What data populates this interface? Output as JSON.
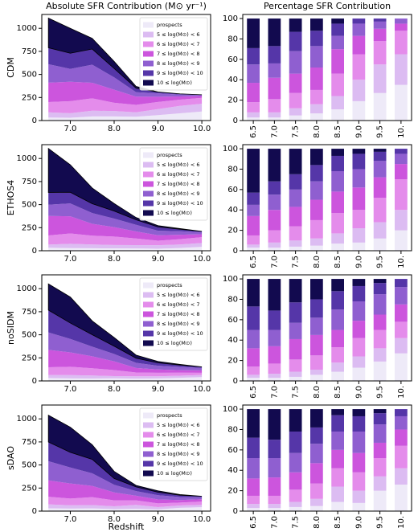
{
  "chart_data": [
    {
      "type": "area",
      "title": "Absolute SFR Contribution (M⊙ yr⁻¹)",
      "ylabel": "CDM",
      "legend": "upper right",
      "x": [
        6.5,
        7.0,
        7.5,
        8.0,
        8.5,
        9.0,
        9.5,
        10.0
      ],
      "xlim": [
        6.35,
        10.2
      ],
      "xticks": [
        {
          "value": 7,
          "label": "7.0"
        },
        {
          "value": 8,
          "label": "8.0"
        },
        {
          "value": 9,
          "label": "9.0"
        },
        {
          "value": 10,
          "label": "10.0"
        }
      ],
      "ylim": [
        0,
        1150
      ],
      "yticks": [
        0,
        250,
        500,
        750,
        1000
      ],
      "series": [
        {
          "name": "prospects",
          "color": "#eeeaf8",
          "values": [
            33,
            30,
            45,
            45,
            41,
            59,
            78,
            98
          ]
        },
        {
          "name": "5 ≤ log(M⊙) < 6",
          "color": "#dcbcf2",
          "values": [
            56,
            50,
            62,
            58,
            48,
            65,
            81,
            84
          ]
        },
        {
          "name": "6 ≤ log(M⊙) < 7",
          "color": "#e48ceb",
          "values": [
            111,
            130,
            134,
            90,
            81,
            78,
            67,
            64
          ]
        },
        {
          "name": "7 ≤ log(M⊙) < 8",
          "color": "#cc55dd",
          "values": [
            211,
            210,
            169,
            141,
            89,
            56,
            35,
            20
          ]
        },
        {
          "name": "8 ≤ log(M⊙) < 9",
          "color": "#8f5fd0",
          "values": [
            200,
            140,
            196,
            134,
            48,
            37,
            20,
            14
          ]
        },
        {
          "name": "9 ≤ log(M⊙) < 10",
          "color": "#5536a8",
          "values": [
            178,
            170,
            169,
            96,
            44,
            15,
            9,
            0
          ]
        },
        {
          "name": "10 ≤ log(M⊙)",
          "color": "#120a4f",
          "values": [
            322,
            270,
            116,
            77,
            19,
            0,
            0,
            0
          ]
        }
      ]
    },
    {
      "type": "bar",
      "title": "Percentage SFR Contribution",
      "categories": [
        "6.5",
        "7.0",
        "7.5",
        "8.0",
        "8.5",
        "9.0",
        "9.5",
        "10."
      ],
      "ylim": [
        0,
        104
      ],
      "yticks": [
        0,
        20,
        40,
        60,
        80,
        100
      ],
      "series": [
        {
          "color": "#eeeaf8",
          "values": [
            3,
            3,
            5,
            7,
            11,
            19,
            27,
            35
          ]
        },
        {
          "color": "#dcbcf2",
          "values": [
            5,
            5,
            7,
            9,
            13,
            21,
            28,
            30
          ]
        },
        {
          "color": "#e48ceb",
          "values": [
            10,
            13,
            15,
            14,
            22,
            25,
            23,
            23
          ]
        },
        {
          "color": "#cc55dd",
          "values": [
            19,
            21,
            19,
            22,
            24,
            18,
            12,
            7
          ]
        },
        {
          "color": "#8f5fd0",
          "values": [
            18,
            14,
            22,
            21,
            13,
            12,
            7,
            5
          ]
        },
        {
          "color": "#5536a8",
          "values": [
            16,
            17,
            19,
            15,
            12,
            5,
            3,
            0
          ]
        },
        {
          "color": "#120a4f",
          "values": [
            29,
            27,
            13,
            12,
            5,
            0,
            0,
            0
          ]
        }
      ]
    },
    {
      "type": "area",
      "ylabel": "ETHOS4",
      "legend": "upper right",
      "x": [
        6.5,
        7.0,
        7.5,
        8.0,
        8.5,
        9.0,
        9.5,
        10.0
      ],
      "xlim": [
        6.35,
        10.2
      ],
      "xticks": [
        {
          "value": 7,
          "label": "7.0"
        },
        {
          "value": 8,
          "label": "8.0"
        },
        {
          "value": 9,
          "label": "9.0"
        },
        {
          "value": 10,
          "label": "10.0"
        }
      ],
      "ylim": [
        0,
        1150
      ],
      "yticks": [
        0,
        250,
        500,
        750,
        1000
      ],
      "series": [
        {
          "name": "prospects",
          "color": "#eeeaf8",
          "values": [
            33,
            28,
            27,
            26,
            25,
            22,
            29,
            42
          ]
        },
        {
          "name": "5 ≤ log(M⊙) < 6",
          "color": "#dcbcf2",
          "values": [
            33,
            47,
            41,
            36,
            36,
            38,
            38,
            42
          ]
        },
        {
          "name": "6 ≤ log(M⊙) < 7",
          "color": "#e48ceb",
          "values": [
            100,
            112,
            95,
            92,
            72,
            49,
            58,
            63
          ]
        },
        {
          "name": "7 ≤ log(M⊙) < 8",
          "color": "#cc55dd",
          "values": [
            211,
            186,
            129,
            102,
            76,
            59,
            48,
            32
          ]
        },
        {
          "name": "8 ≤ log(M⊙) < 9",
          "color": "#8f5fd0",
          "values": [
            122,
            140,
            116,
            92,
            72,
            49,
            38,
            21
          ]
        },
        {
          "name": "9 ≤ log(M⊙) < 10",
          "color": "#5536a8",
          "values": [
            133,
            121,
            102,
            82,
            54,
            41,
            22,
            10
          ]
        },
        {
          "name": "10 ≤ log(M⊙)",
          "color": "#120a4f",
          "values": [
            477,
            298,
            170,
            82,
            25,
            14,
            7,
            0
          ]
        }
      ]
    },
    {
      "type": "bar",
      "categories": [
        "6.5",
        "7.0",
        "7.5",
        "8.0",
        "8.5",
        "9.0",
        "9.5",
        "10."
      ],
      "ylim": [
        0,
        104
      ],
      "yticks": [
        0,
        20,
        40,
        60,
        80,
        100
      ],
      "series": [
        {
          "color": "#eeeaf8",
          "values": [
            3,
            3,
            4,
            5,
            7,
            8,
            12,
            20
          ]
        },
        {
          "color": "#dcbcf2",
          "values": [
            3,
            5,
            6,
            7,
            10,
            14,
            16,
            20
          ]
        },
        {
          "color": "#e48ceb",
          "values": [
            9,
            12,
            14,
            18,
            20,
            18,
            24,
            30
          ]
        },
        {
          "color": "#cc55dd",
          "values": [
            19,
            20,
            19,
            20,
            21,
            22,
            20,
            15
          ]
        },
        {
          "color": "#8f5fd0",
          "values": [
            11,
            15,
            17,
            18,
            20,
            18,
            16,
            10
          ]
        },
        {
          "color": "#5536a8",
          "values": [
            12,
            13,
            15,
            16,
            15,
            15,
            9,
            5
          ]
        },
        {
          "color": "#120a4f",
          "values": [
            43,
            32,
            25,
            16,
            7,
            5,
            3,
            0
          ]
        }
      ]
    },
    {
      "type": "area",
      "ylabel": "noSIDM",
      "legend": "upper right",
      "x": [
        6.5,
        7.0,
        7.5,
        8.0,
        8.5,
        9.0,
        9.5,
        10.0
      ],
      "xlim": [
        6.35,
        10.2
      ],
      "xticks": [
        {
          "value": 7,
          "label": "7.0"
        },
        {
          "value": 8,
          "label": "8.0"
        },
        {
          "value": 9,
          "label": "9.0"
        },
        {
          "value": 10,
          "label": "10.0"
        }
      ],
      "ylim": [
        0,
        1150
      ],
      "yticks": [
        0,
        250,
        500,
        750,
        1000
      ],
      "series": [
        {
          "name": "prospects",
          "color": "#eeeaf8",
          "values": [
            32,
            27,
            26,
            28,
            25,
            27,
            34,
            41
          ]
        },
        {
          "name": "5 ≤ log(M⊙) < 6",
          "color": "#dcbcf2",
          "values": [
            32,
            36,
            33,
            24,
            25,
            23,
            23,
            23
          ]
        },
        {
          "name": "6 ≤ log(M⊙) < 7",
          "color": "#e48ceb",
          "values": [
            84,
            91,
            78,
            66,
            42,
            38,
            32,
            24
          ]
        },
        {
          "name": "7 ≤ log(M⊙) < 8",
          "color": "#cc55dd",
          "values": [
            189,
            155,
            130,
            94,
            48,
            36,
            27,
            26
          ]
        },
        {
          "name": "8 ≤ log(M⊙) < 9",
          "color": "#8f5fd0",
          "values": [
            189,
            146,
            104,
            80,
            56,
            40,
            36,
            26
          ]
        },
        {
          "name": "9 ≤ log(M⊙) < 10",
          "color": "#5536a8",
          "values": [
            242,
            173,
            130,
            85,
            50,
            32,
            20,
            12
          ]
        },
        {
          "name": "10 ≤ log(M⊙)",
          "color": "#120a4f",
          "values": [
            284,
            282,
            150,
            94,
            34,
            15,
            7,
            0
          ]
        }
      ]
    },
    {
      "type": "bar",
      "categories": [
        "6.5",
        "7.0",
        "7.5",
        "8.0",
        "8.5",
        "9.0",
        "9.5",
        "10."
      ],
      "ylim": [
        0,
        104
      ],
      "yticks": [
        0,
        20,
        40,
        60,
        80,
        100
      ],
      "series": [
        {
          "color": "#eeeaf8",
          "values": [
            3,
            3,
            4,
            6,
            9,
            13,
            19,
            27
          ]
        },
        {
          "color": "#dcbcf2",
          "values": [
            3,
            4,
            5,
            5,
            9,
            11,
            13,
            15
          ]
        },
        {
          "color": "#e48ceb",
          "values": [
            8,
            10,
            12,
            14,
            15,
            18,
            18,
            16
          ]
        },
        {
          "color": "#cc55dd",
          "values": [
            18,
            17,
            20,
            20,
            17,
            17,
            15,
            17
          ]
        },
        {
          "color": "#8f5fd0",
          "values": [
            18,
            16,
            16,
            17,
            20,
            19,
            20,
            17
          ]
        },
        {
          "color": "#5536a8",
          "values": [
            23,
            19,
            20,
            18,
            18,
            15,
            11,
            8
          ]
        },
        {
          "color": "#120a4f",
          "values": [
            27,
            31,
            23,
            20,
            12,
            7,
            4,
            0
          ]
        }
      ]
    },
    {
      "type": "area",
      "ylabel": "sDAO",
      "xlabel": "Redshift",
      "legend": "upper right",
      "x": [
        6.5,
        7.0,
        7.5,
        8.0,
        8.5,
        9.0,
        9.5,
        10.0
      ],
      "xlim": [
        6.35,
        10.2
      ],
      "xticks": [
        {
          "value": 7,
          "label": "7.0"
        },
        {
          "value": 8,
          "label": "8.0"
        },
        {
          "value": 9,
          "label": "9.0"
        },
        {
          "value": 10,
          "label": "10.0"
        }
      ],
      "ylim": [
        0,
        1150
      ],
      "yticks": [
        0,
        250,
        500,
        750,
        1000
      ],
      "series": [
        {
          "name": "prospects",
          "color": "#eeeaf8",
          "values": [
            31,
            27,
            29,
            22,
            25,
            18,
            36,
            42
          ]
        },
        {
          "name": "5 ≤ log(M⊙) < 6",
          "color": "#dcbcf2",
          "values": [
            42,
            36,
            36,
            30,
            42,
            26,
            25,
            26
          ]
        },
        {
          "name": "6 ≤ log(M⊙) < 7",
          "color": "#e48ceb",
          "values": [
            83,
            73,
            86,
            65,
            50,
            40,
            32,
            35
          ]
        },
        {
          "name": "7 ≤ log(M⊙) < 8",
          "color": "#cc55dd",
          "values": [
            177,
            164,
            122,
            86,
            50,
            42,
            27,
            26
          ]
        },
        {
          "name": "8 ≤ log(M⊙) < 9",
          "color": "#8f5fd0",
          "values": [
            208,
            173,
            137,
            82,
            50,
            46,
            32,
            21
          ]
        },
        {
          "name": "9 ≤ log(M⊙) < 10",
          "color": "#5536a8",
          "values": [
            208,
            164,
            151,
            69,
            45,
            33,
            20,
            11
          ]
        },
        {
          "name": "10 ≤ log(M⊙)",
          "color": "#120a4f",
          "values": [
            291,
            273,
            158,
            77,
            17,
            15,
            7,
            0
          ]
        }
      ]
    },
    {
      "type": "bar",
      "categories": [
        "6.5",
        "7.0",
        "7.5",
        "8.0",
        "8.5",
        "9.0",
        "9.5",
        "10."
      ],
      "ylim": [
        0,
        104
      ],
      "yticks": [
        0,
        20,
        40,
        60,
        80,
        100
      ],
      "series": [
        {
          "color": "#eeeaf8",
          "values": [
            3,
            3,
            4,
            5,
            9,
            8,
            20,
            26
          ]
        },
        {
          "color": "#dcbcf2",
          "values": [
            4,
            4,
            5,
            7,
            15,
            12,
            14,
            16
          ]
        },
        {
          "color": "#e48ceb",
          "values": [
            8,
            8,
            12,
            15,
            18,
            18,
            18,
            22
          ]
        },
        {
          "color": "#cc55dd",
          "values": [
            17,
            18,
            17,
            20,
            18,
            19,
            15,
            16
          ]
        },
        {
          "color": "#8f5fd0",
          "values": [
            20,
            19,
            19,
            19,
            18,
            21,
            18,
            13
          ]
        },
        {
          "color": "#5536a8",
          "values": [
            20,
            18,
            21,
            16,
            16,
            15,
            11,
            7
          ]
        },
        {
          "color": "#120a4f",
          "values": [
            28,
            30,
            22,
            18,
            6,
            7,
            4,
            0
          ]
        }
      ]
    }
  ]
}
